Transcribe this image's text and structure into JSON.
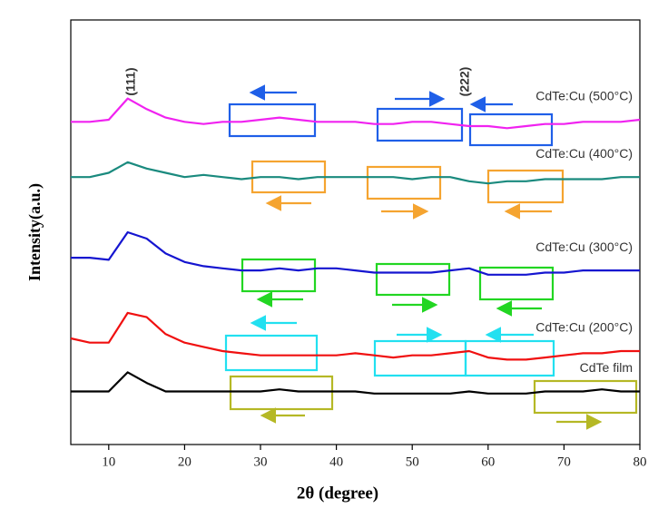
{
  "chart_data": {
    "type": "line",
    "x_label": "2θ (degree)",
    "y_label": "Intensity(a.u.)",
    "xlim": [
      5,
      80
    ],
    "xticks": [
      10,
      20,
      30,
      40,
      50,
      60,
      70,
      80
    ],
    "ylim": [
      0,
      100
    ],
    "x": [
      5,
      7.5,
      10,
      12.5,
      15,
      17.5,
      20,
      22.5,
      25,
      27.5,
      30,
      32.5,
      35,
      37.5,
      40,
      42.5,
      45,
      47.5,
      50,
      52.5,
      55,
      57.5,
      60,
      62.5,
      65,
      67.5,
      70,
      72.5,
      75,
      77.5,
      80
    ],
    "series": [
      {
        "name": "CdTe:Cu (500°C)",
        "color": "#f022f0",
        "values": [
          76,
          76,
          76.5,
          81.5,
          79,
          77,
          76,
          75.5,
          76,
          76,
          76.5,
          77,
          76.5,
          76,
          76,
          76,
          75.5,
          75.5,
          76,
          76,
          75.5,
          75,
          75,
          74.5,
          75,
          75.5,
          75.5,
          76,
          76,
          76,
          76.5
        ]
      },
      {
        "name": "CdTe:Cu (400°C)",
        "color": "#1a8a7e",
        "values": [
          63,
          63,
          64,
          66.5,
          65,
          64,
          63,
          63.5,
          63,
          62.5,
          63,
          63,
          62.5,
          63,
          63,
          63,
          63,
          63,
          62.5,
          63,
          63,
          62,
          61.5,
          62,
          62,
          62.5,
          62.5,
          62.5,
          62.5,
          63,
          63
        ]
      },
      {
        "name": "CdTe:Cu (300°C)",
        "color": "#1515d0",
        "values": [
          44,
          44,
          43.5,
          50,
          48.5,
          45,
          43,
          42,
          41.5,
          41,
          41,
          41.5,
          41,
          41.5,
          41.5,
          41,
          40.5,
          40.5,
          40.5,
          40.5,
          41,
          41.5,
          40,
          40,
          40,
          40.5,
          40.5,
          41,
          41,
          41,
          41
        ]
      },
      {
        "name": "CdTe:Cu (200°C)",
        "color": "#f01010",
        "values": [
          25,
          24,
          24,
          31,
          30,
          26,
          24,
          23,
          22,
          21.5,
          21,
          21,
          21,
          21,
          21,
          21.5,
          21,
          20.5,
          21,
          21,
          21.5,
          22,
          20.5,
          20,
          20,
          20.5,
          21,
          21.5,
          21.5,
          22,
          22
        ]
      },
      {
        "name": "CdTe film",
        "color": "#000000",
        "values": [
          12.5,
          12.5,
          12.5,
          17,
          14.5,
          12.5,
          12.5,
          12.5,
          12.5,
          12.5,
          12.5,
          13,
          12.5,
          12.5,
          12.5,
          12.5,
          12,
          12,
          12,
          12,
          12,
          12.5,
          12,
          12,
          12,
          12.5,
          12.5,
          12.5,
          13,
          12.5,
          12.5
        ]
      }
    ],
    "annotations": [
      {
        "text": "(111)",
        "x": 13
      },
      {
        "text": "(222)",
        "x": 57
      }
    ]
  }
}
